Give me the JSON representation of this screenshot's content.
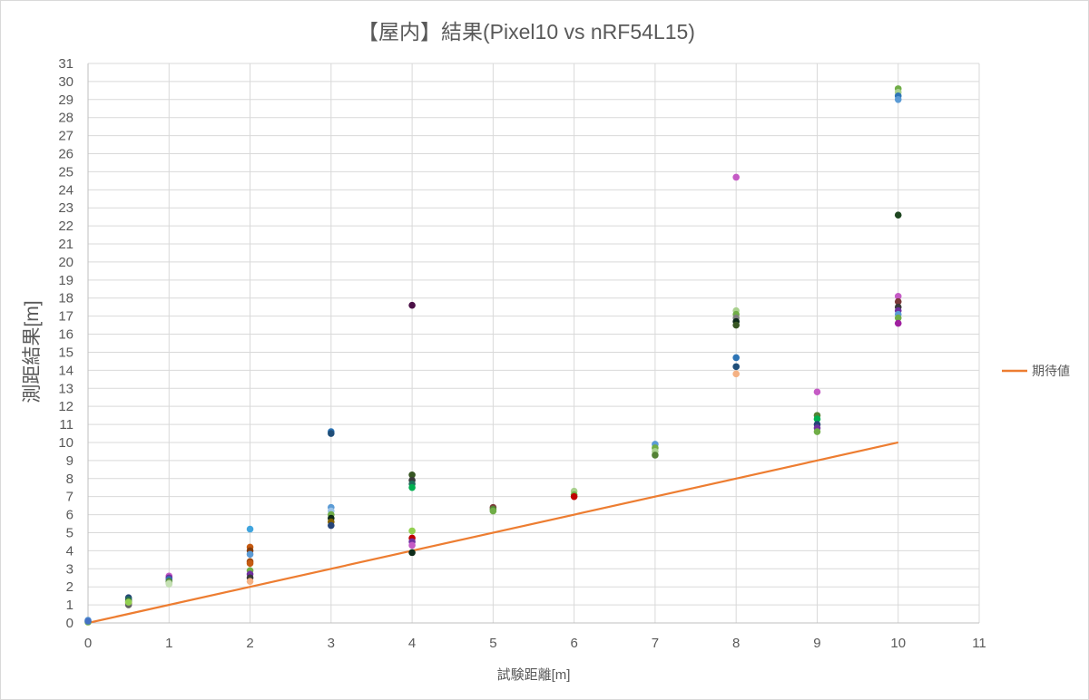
{
  "chart_data": {
    "type": "scatter",
    "title": "【屋内】結果(Pixel10 vs nRF54L15)",
    "xlabel": "試験距離[m]",
    "ylabel": "測距結果[m]",
    "xlim": [
      0,
      11
    ],
    "ylim": [
      0,
      31
    ],
    "x_ticks": [
      "0",
      "1",
      "2",
      "3",
      "4",
      "5",
      "6",
      "7",
      "8",
      "9",
      "10",
      "11"
    ],
    "y_ticks": [
      "0",
      "1",
      "2",
      "3",
      "4",
      "5",
      "6",
      "7",
      "8",
      "9",
      "10",
      "11",
      "12",
      "13",
      "14",
      "15",
      "16",
      "17",
      "18",
      "19",
      "20",
      "21",
      "22",
      "23",
      "24",
      "25",
      "26",
      "27",
      "28",
      "29",
      "30",
      "31"
    ],
    "grid": true,
    "legend_position": "right",
    "expected_series": {
      "name": "期待値",
      "color": "#ed7d31",
      "x": [
        0,
        10
      ],
      "y": [
        0,
        10
      ]
    },
    "measurements": [
      {
        "x": 0,
        "y": 0.15,
        "color": "#5b9bd5"
      },
      {
        "x": 0,
        "y": 0.05,
        "color": "#70ad47"
      },
      {
        "x": 0,
        "y": 0.1,
        "color": "#4472c4"
      },
      {
        "x": 0.5,
        "y": 1.4,
        "color": "#264478"
      },
      {
        "x": 0.5,
        "y": 1.3,
        "color": "#1f6f5c"
      },
      {
        "x": 0.5,
        "y": 1.2,
        "color": "#43682b"
      },
      {
        "x": 0.5,
        "y": 1.1,
        "color": "#9e480e"
      },
      {
        "x": 0.5,
        "y": 1.0,
        "color": "#636363"
      },
      {
        "x": 0.5,
        "y": 1.15,
        "color": "#92d050"
      },
      {
        "x": 1,
        "y": 2.6,
        "color": "#c55bc5"
      },
      {
        "x": 1,
        "y": 2.5,
        "color": "#7030a0"
      },
      {
        "x": 1,
        "y": 2.4,
        "color": "#2e75b6"
      },
      {
        "x": 1,
        "y": 2.3,
        "color": "#548235"
      },
      {
        "x": 1,
        "y": 2.2,
        "color": "#a9d18e"
      },
      {
        "x": 1,
        "y": 2.15,
        "color": "#c5e0b4"
      },
      {
        "x": 2,
        "y": 5.2,
        "color": "#41a5de"
      },
      {
        "x": 2,
        "y": 4.2,
        "color": "#c55a11"
      },
      {
        "x": 2,
        "y": 4.0,
        "color": "#843c0c"
      },
      {
        "x": 2,
        "y": 3.8,
        "color": "#5b9bd5"
      },
      {
        "x": 2,
        "y": 3.4,
        "color": "#9e480e"
      },
      {
        "x": 2,
        "y": 3.3,
        "color": "#c55a11"
      },
      {
        "x": 2,
        "y": 2.9,
        "color": "#70ad47"
      },
      {
        "x": 2,
        "y": 2.7,
        "color": "#7030a0"
      },
      {
        "x": 2,
        "y": 2.5,
        "color": "#3a3a3a"
      },
      {
        "x": 2,
        "y": 2.3,
        "color": "#f4b183"
      },
      {
        "x": 3,
        "y": 10.6,
        "color": "#2e75b6"
      },
      {
        "x": 3,
        "y": 10.5,
        "color": "#1f4e79"
      },
      {
        "x": 3,
        "y": 6.4,
        "color": "#5b9bd5"
      },
      {
        "x": 3,
        "y": 6.2,
        "color": "#9dc3e6"
      },
      {
        "x": 3,
        "y": 6.0,
        "color": "#70ad47"
      },
      {
        "x": 3,
        "y": 5.8,
        "color": "#0d2b1a"
      },
      {
        "x": 3,
        "y": 5.6,
        "color": "#7f6000"
      },
      {
        "x": 3,
        "y": 5.4,
        "color": "#264478"
      },
      {
        "x": 4,
        "y": 17.6,
        "color": "#4b1046"
      },
      {
        "x": 4,
        "y": 8.2,
        "color": "#375623"
      },
      {
        "x": 4,
        "y": 7.9,
        "color": "#3a3a3a"
      },
      {
        "x": 4,
        "y": 7.7,
        "color": "#1f6f5c"
      },
      {
        "x": 4,
        "y": 7.5,
        "color": "#00b050"
      },
      {
        "x": 4,
        "y": 5.1,
        "color": "#92d050"
      },
      {
        "x": 4,
        "y": 4.7,
        "color": "#c00000"
      },
      {
        "x": 4,
        "y": 4.5,
        "color": "#7030a0"
      },
      {
        "x": 4,
        "y": 4.3,
        "color": "#c55bc5"
      },
      {
        "x": 4,
        "y": 3.9,
        "color": "#0d2b1a"
      },
      {
        "x": 5,
        "y": 6.4,
        "color": "#7b3a3a"
      },
      {
        "x": 5,
        "y": 6.3,
        "color": "#548235"
      },
      {
        "x": 5,
        "y": 6.2,
        "color": "#70ad47"
      },
      {
        "x": 6,
        "y": 7.3,
        "color": "#a9d18e"
      },
      {
        "x": 6,
        "y": 7.1,
        "color": "#70ad47"
      },
      {
        "x": 6,
        "y": 7.0,
        "color": "#c00000"
      },
      {
        "x": 7,
        "y": 9.9,
        "color": "#5b9bd5"
      },
      {
        "x": 7,
        "y": 9.7,
        "color": "#70ad47"
      },
      {
        "x": 7,
        "y": 9.5,
        "color": "#a9d18e"
      },
      {
        "x": 7,
        "y": 9.3,
        "color": "#548235"
      },
      {
        "x": 8,
        "y": 24.7,
        "color": "#c55bc5"
      },
      {
        "x": 8,
        "y": 17.3,
        "color": "#a9d18e"
      },
      {
        "x": 8,
        "y": 17.1,
        "color": "#70ad47"
      },
      {
        "x": 8,
        "y": 16.9,
        "color": "#7f7f7f"
      },
      {
        "x": 8,
        "y": 16.7,
        "color": "#0d2b1a"
      },
      {
        "x": 8,
        "y": 16.5,
        "color": "#375623"
      },
      {
        "x": 8,
        "y": 14.7,
        "color": "#2e75b6"
      },
      {
        "x": 8,
        "y": 14.2,
        "color": "#1f4e79"
      },
      {
        "x": 8,
        "y": 13.8,
        "color": "#f4b183"
      },
      {
        "x": 9,
        "y": 12.8,
        "color": "#c55bc5"
      },
      {
        "x": 9,
        "y": 11.5,
        "color": "#548235"
      },
      {
        "x": 9,
        "y": 11.3,
        "color": "#00b050"
      },
      {
        "x": 9,
        "y": 11.0,
        "color": "#264478"
      },
      {
        "x": 9,
        "y": 10.8,
        "color": "#7030a0"
      },
      {
        "x": 9,
        "y": 10.6,
        "color": "#70ad47"
      },
      {
        "x": 10,
        "y": 29.6,
        "color": "#70ad47"
      },
      {
        "x": 10,
        "y": 29.4,
        "color": "#a9d18e"
      },
      {
        "x": 10,
        "y": 29.2,
        "color": "#2e75b6"
      },
      {
        "x": 10,
        "y": 29.0,
        "color": "#5b9bd5"
      },
      {
        "x": 10,
        "y": 22.6,
        "color": "#1e4620"
      },
      {
        "x": 10,
        "y": 18.1,
        "color": "#c55bc5"
      },
      {
        "x": 10,
        "y": 17.8,
        "color": "#7b3a3a"
      },
      {
        "x": 10,
        "y": 17.5,
        "color": "#3a3a3a"
      },
      {
        "x": 10,
        "y": 17.3,
        "color": "#7030a0"
      },
      {
        "x": 10,
        "y": 17.1,
        "color": "#5b9bd5"
      },
      {
        "x": 10,
        "y": 16.9,
        "color": "#70ad47"
      },
      {
        "x": 10,
        "y": 16.6,
        "color": "#a020a0"
      }
    ]
  }
}
